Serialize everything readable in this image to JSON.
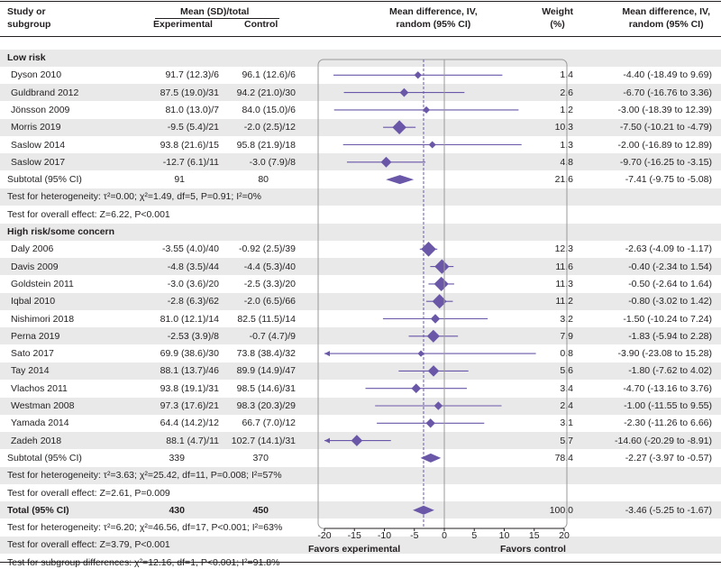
{
  "header": {
    "study_label": "Study or\nsubgroup",
    "group_title": "Mean (SD)/total",
    "experimental": "Experimental",
    "control": "Control",
    "plot_title": "Mean difference, IV,\nrandom (95% CI)",
    "weight": "Weight\n(%)",
    "md_title": "Mean difference, IV,\nrandom (95% CI)"
  },
  "colors": {
    "marker": "#6a57a8",
    "band": "#e9e9ea",
    "text": "#231f20",
    "axis": "#999999"
  },
  "chart_data": {
    "type": "forest",
    "xlabel_left": "Favors experimental",
    "xlabel_right": "Favors control",
    "xlim": [
      -20,
      20
    ],
    "xticks": [
      "-20",
      "-15",
      "-10",
      "-5",
      "0",
      "5",
      "10",
      "15",
      "20"
    ],
    "xtick_values": [
      -20,
      -15,
      -10,
      -5,
      0,
      5,
      10,
      15,
      20
    ],
    "overall_effect_line": -3.46,
    "groups": [
      {
        "title": "Low risk",
        "studies": [
          {
            "name": "Dyson 2010",
            "exp": "91.7 (12.3)/6",
            "ctrl": "96.1 (12.6)/6",
            "weight": "1.4",
            "md_text": "-4.40 (-18.49 to 9.69)",
            "md": -4.4,
            "lo": -18.49,
            "hi": 9.69,
            "w": 1.4
          },
          {
            "name": "Guldbrand 2012",
            "exp": "87.5 (19.0)/31",
            "ctrl": "94.2 (21.0)/30",
            "weight": "2.6",
            "md_text": "-6.70 (-16.76 to 3.36)",
            "md": -6.7,
            "lo": -16.76,
            "hi": 3.36,
            "w": 2.6
          },
          {
            "name": "Jönsson 2009",
            "exp": "81.0 (13.0)/7",
            "ctrl": "84.0 (15.0)/6",
            "weight": "1.2",
            "md_text": "-3.00 (-18.39 to 12.39)",
            "md": -3.0,
            "lo": -18.39,
            "hi": 12.39,
            "w": 1.2
          },
          {
            "name": "Morris 2019",
            "exp": "-9.5 (5.4)/21",
            "ctrl": "-2.0 (2.5)/12",
            "weight": "10.3",
            "md_text": "-7.50 (-10.21 to -4.79)",
            "md": -7.5,
            "lo": -10.21,
            "hi": -4.79,
            "w": 10.3
          },
          {
            "name": "Saslow 2014",
            "exp": "93.8 (21.6)/15",
            "ctrl": "95.8 (21.9)/18",
            "weight": "1.3",
            "md_text": "-2.00 (-16.89 to 12.89)",
            "md": -2.0,
            "lo": -16.89,
            "hi": 12.89,
            "w": 1.3
          },
          {
            "name": "Saslow 2017",
            "exp": "-12.7 (6.1)/11",
            "ctrl": "-3.0 (7.9)/8",
            "weight": "4.8",
            "md_text": "-9.70 (-16.25 to -3.15)",
            "md": -9.7,
            "lo": -16.25,
            "hi": -3.15,
            "w": 4.8
          }
        ],
        "subtotal": {
          "label": "Subtotal (95% CI)",
          "exp": "91",
          "ctrl": "80",
          "weight": "21.6",
          "md_text": "-7.41 (-9.75 to -5.08)",
          "md": -7.41,
          "lo": -9.75,
          "hi": -5.08
        },
        "heterogeneity": "Test for heterogeneity: τ²=0.00; χ²=1.49, df=5, P=0.91; I²=0%",
        "overall": "Test for overall effect: Z=6.22, P<0.001"
      },
      {
        "title": "High risk/some concern",
        "studies": [
          {
            "name": "Daly 2006",
            "exp": "-3.55 (4.0)/40",
            "ctrl": "-0.92 (2.5)/39",
            "weight": "12.3",
            "md_text": "-2.63 (-4.09 to -1.17)",
            "md": -2.63,
            "lo": -4.09,
            "hi": -1.17,
            "w": 12.3
          },
          {
            "name": "Davis 2009",
            "exp": "-4.8 (3.5)/44",
            "ctrl": "-4.4 (5.3)/40",
            "weight": "11.6",
            "md_text": "-0.40 (-2.34 to 1.54)",
            "md": -0.4,
            "lo": -2.34,
            "hi": 1.54,
            "w": 11.6
          },
          {
            "name": "Goldstein 2011",
            "exp": "-3.0 (3.6)/20",
            "ctrl": "-2.5 (3.3)/20",
            "weight": "11.3",
            "md_text": "-0.50 (-2.64 to 1.64)",
            "md": -0.5,
            "lo": -2.64,
            "hi": 1.64,
            "w": 11.3
          },
          {
            "name": "Iqbal 2010",
            "exp": "-2.8 (6.3)/62",
            "ctrl": "-2.0 (6.5)/66",
            "weight": "11.2",
            "md_text": "-0.80 (-3.02 to 1.42)",
            "md": -0.8,
            "lo": -3.02,
            "hi": 1.42,
            "w": 11.2
          },
          {
            "name": "Nishimori 2018",
            "exp": "81.0 (12.1)/14",
            "ctrl": "82.5 (11.5)/14",
            "weight": "3.2",
            "md_text": "-1.50 (-10.24 to 7.24)",
            "md": -1.5,
            "lo": -10.24,
            "hi": 7.24,
            "w": 3.2
          },
          {
            "name": "Perna 2019",
            "exp": "-2.53 (3.9)/8",
            "ctrl": "-0.7 (4.7)/9",
            "weight": "7.9",
            "md_text": "-1.83 (-5.94 to 2.28)",
            "md": -1.83,
            "lo": -5.94,
            "hi": 2.28,
            "w": 7.9
          },
          {
            "name": "Sato 2017",
            "exp": "69.9 (38.6)/30",
            "ctrl": "73.8 (38.4)/32",
            "weight": "0.8",
            "md_text": "-3.90 (-23.08 to 15.28)",
            "md": -3.9,
            "lo": -23.08,
            "hi": 15.28,
            "w": 0.8
          },
          {
            "name": "Tay 2014",
            "exp": "88.1 (13.7)/46",
            "ctrl": "89.9 (14.9)/47",
            "weight": "5.6",
            "md_text": "-1.80 (-7.62 to 4.02)",
            "md": -1.8,
            "lo": -7.62,
            "hi": 4.02,
            "w": 5.6
          },
          {
            "name": "Vlachos 2011",
            "exp": "93.8 (19.1)/31",
            "ctrl": "98.5 (14.6)/31",
            "weight": "3.4",
            "md_text": "-4.70 (-13.16 to 3.76)",
            "md": -4.7,
            "lo": -13.16,
            "hi": 3.76,
            "w": 3.4
          },
          {
            "name": "Westman 2008",
            "exp": "97.3 (17.6)/21",
            "ctrl": "98.3 (20.3)/29",
            "weight": "2.4",
            "md_text": "-1.00 (-11.55 to 9.55)",
            "md": -1.0,
            "lo": -11.55,
            "hi": 9.55,
            "w": 2.4
          },
          {
            "name": "Yamada 2014",
            "exp": "64.4 (14.2)/12",
            "ctrl": "66.7 (7.0)/12",
            "weight": "3.1",
            "md_text": "-2.30 (-11.26 to 6.66)",
            "md": -2.3,
            "lo": -11.26,
            "hi": 6.66,
            "w": 3.1
          },
          {
            "name": "Zadeh 2018",
            "exp": "88.1 (4.7)/11",
            "ctrl": "102.7 (14.1)/31",
            "weight": "5.7",
            "md_text": "-14.60 (-20.29 to -8.91)",
            "md": -14.6,
            "lo": -20.29,
            "hi": -8.91,
            "w": 5.7
          }
        ],
        "subtotal": {
          "label": "Subtotal (95% CI)",
          "exp": "339",
          "ctrl": "370",
          "weight": "78.4",
          "md_text": "-2.27 (-3.97 to -0.57)",
          "md": -2.27,
          "lo": -3.97,
          "hi": -0.57
        },
        "heterogeneity": "Test for heterogeneity: τ²=3.63; χ²=25.42, df=11, P=0.008; I²=57%",
        "overall": "Test for overall effect: Z=2.61, P=0.009"
      }
    ],
    "total": {
      "label": "Total (95% CI)",
      "exp": "430",
      "ctrl": "450",
      "weight": "100.0",
      "md_text": "-3.46 (-5.25 to -1.67)",
      "md": -3.46,
      "lo": -5.25,
      "hi": -1.67
    },
    "total_heterogeneity": "Test for heterogeneity: τ²=6.20; χ²=46.56, df=17, P<0.001; I²=63%",
    "total_overall": "Test for overall effect: Z=3.79, P<0.001",
    "subgroup_differences": "Test for subgroup differences: χ²=12.16, df=1, P<0.001; I²=91.8%"
  }
}
